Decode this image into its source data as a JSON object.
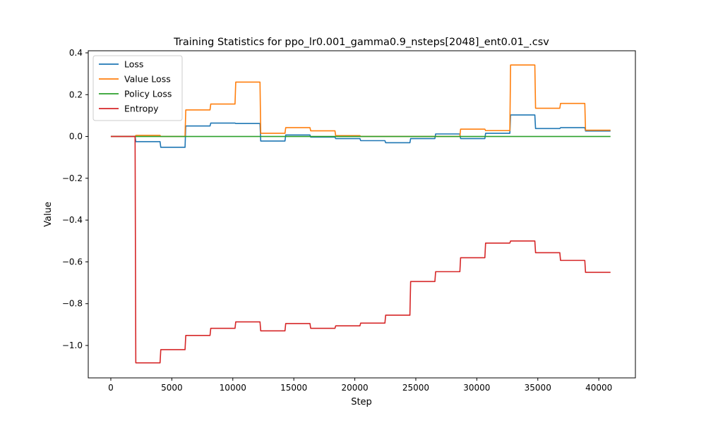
{
  "chart_data": {
    "type": "line",
    "title": "Training Statistics for ppo_lr0.001_gamma0.9_nsteps[2048]_ent0.01_.csv",
    "xlabel": "Step",
    "ylabel": "Value",
    "xlim": [
      -1850,
      43000
    ],
    "ylim": [
      -1.155,
      0.41
    ],
    "xticks": [
      0,
      5000,
      10000,
      15000,
      20000,
      25000,
      30000,
      35000,
      40000
    ],
    "xtick_labels": [
      "0",
      "5000",
      "10000",
      "15000",
      "20000",
      "25000",
      "30000",
      "35000",
      "40000"
    ],
    "yticks": [
      -1.0,
      -0.8,
      -0.6,
      -0.4,
      -0.2,
      0.0,
      0.2,
      0.4
    ],
    "ytick_labels": [
      "−1.0",
      "−0.8",
      "−0.6",
      "−0.4",
      "−0.2",
      "0.0",
      "0.2",
      "0.4"
    ],
    "grid": false,
    "legend_position": "top-left",
    "x": [
      0,
      2048,
      4096,
      6144,
      8192,
      10240,
      12288,
      14336,
      16384,
      18432,
      20480,
      22528,
      24576,
      26624,
      28672,
      30720,
      32768,
      34816,
      36864,
      38912,
      40960
    ],
    "series": [
      {
        "name": "Loss",
        "color": "#1f77b4",
        "values": [
          0.0,
          -0.025,
          -0.052,
          0.05,
          0.064,
          0.062,
          -0.022,
          0.007,
          -0.003,
          -0.01,
          -0.02,
          -0.03,
          -0.01,
          0.012,
          -0.01,
          0.015,
          0.103,
          0.038,
          0.042,
          0.026,
          0.026
        ]
      },
      {
        "name": "Value Loss",
        "color": "#ff7f0e",
        "values": [
          0.0,
          0.005,
          0.0,
          0.127,
          0.155,
          0.26,
          0.015,
          0.042,
          0.027,
          0.004,
          0.0,
          0.0,
          0.0,
          0.0,
          0.035,
          0.028,
          0.342,
          0.135,
          0.158,
          0.03,
          0.03
        ]
      },
      {
        "name": "Policy Loss",
        "color": "#2ca02c",
        "values": [
          0.0,
          0.0,
          0.0,
          0.0,
          0.0,
          0.0,
          0.0,
          0.0,
          0.0,
          0.0,
          0.0,
          0.0,
          0.0,
          0.0,
          0.0,
          0.0,
          0.0,
          0.0,
          0.0,
          0.0,
          0.0
        ]
      },
      {
        "name": "Entropy",
        "color": "#d62728",
        "values": [
          0.0,
          -1.083,
          -1.02,
          -0.952,
          -0.918,
          -0.887,
          -0.93,
          -0.895,
          -0.918,
          -0.906,
          -0.893,
          -0.855,
          -0.694,
          -0.647,
          -0.58,
          -0.51,
          -0.5,
          -0.556,
          -0.593,
          -0.65,
          -0.65
        ]
      }
    ]
  }
}
